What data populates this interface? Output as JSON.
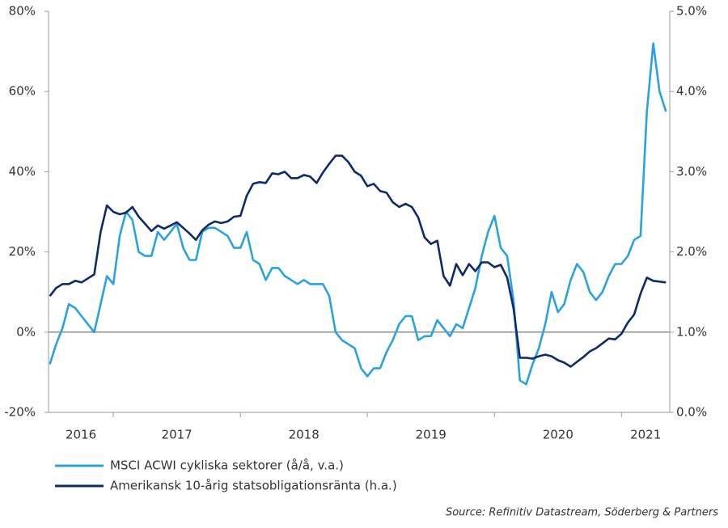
{
  "chart_data": {
    "type": "line",
    "categories": [
      "2016",
      "2017",
      "2018",
      "2019",
      "2020",
      "2021"
    ],
    "x": [
      2016.5,
      2016.55,
      2016.6,
      2016.65,
      2016.7,
      2016.75,
      2016.8,
      2016.85,
      2016.9,
      2016.95,
      2017.0,
      2017.05,
      2017.1,
      2017.15,
      2017.2,
      2017.25,
      2017.3,
      2017.35,
      2017.4,
      2017.45,
      2017.5,
      2017.55,
      2017.6,
      2017.65,
      2017.7,
      2017.75,
      2017.8,
      2017.85,
      2017.9,
      2017.95,
      2018.0,
      2018.05,
      2018.1,
      2018.15,
      2018.2,
      2018.25,
      2018.3,
      2018.35,
      2018.4,
      2018.45,
      2018.5,
      2018.55,
      2018.6,
      2018.65,
      2018.7,
      2018.75,
      2018.8,
      2018.85,
      2018.9,
      2018.95,
      2019.0,
      2019.05,
      2019.1,
      2019.15,
      2019.2,
      2019.25,
      2019.3,
      2019.35,
      2019.4,
      2019.45,
      2019.5,
      2019.55,
      2019.6,
      2019.65,
      2019.7,
      2019.75,
      2019.8,
      2019.85,
      2019.9,
      2019.95,
      2020.0,
      2020.05,
      2020.1,
      2020.15,
      2020.2,
      2020.25,
      2020.3,
      2020.35,
      2020.4,
      2020.45,
      2020.5,
      2020.55,
      2020.6,
      2020.65,
      2020.7,
      2020.75,
      2020.8,
      2020.85,
      2020.9,
      2020.95,
      2021.0,
      2021.05,
      2021.1,
      2021.15,
      2021.2,
      2021.25,
      2021.3,
      2021.35
    ],
    "xlim": [
      2016.49,
      2021.38
    ],
    "xticks": [
      2017,
      2018,
      2019,
      2020,
      2021
    ],
    "ylim": [
      -20,
      80
    ],
    "yticks": [
      {
        "value": -20,
        "label": "-20%"
      },
      {
        "value": 0,
        "label": "0%"
      },
      {
        "value": 20,
        "label": "20%"
      },
      {
        "value": 40,
        "label": "40%"
      },
      {
        "value": 60,
        "label": "60%"
      },
      {
        "value": 80,
        "label": "80%"
      }
    ],
    "y2lim": [
      0,
      5
    ],
    "y2ticks": [
      {
        "value": 0,
        "label": "0.0%"
      },
      {
        "value": 1,
        "label": "1.0%"
      },
      {
        "value": 2,
        "label": "2.0%"
      },
      {
        "value": 3,
        "label": "3.0%"
      },
      {
        "value": 4,
        "label": "4.0%"
      },
      {
        "value": 5,
        "label": "5.0%"
      }
    ],
    "series": [
      {
        "name": "MSCI ACWI cykliska sektorer (å/å, v.a.)",
        "color": "#29a3dd",
        "axis": "y",
        "values": [
          -8,
          -3,
          1,
          7,
          6,
          4,
          2,
          0,
          7,
          14,
          12,
          24,
          30,
          28,
          20,
          19,
          19,
          25,
          23,
          25,
          27,
          21,
          18,
          18,
          25,
          26,
          26,
          25,
          24,
          21,
          21,
          25,
          18,
          17,
          13,
          16,
          16,
          14,
          13,
          12,
          13,
          12,
          12,
          12,
          9,
          0,
          -2,
          -3,
          -4,
          -9,
          -11,
          -9,
          -9,
          -5,
          -2,
          2,
          4,
          4,
          -2,
          -1,
          -1,
          3,
          1,
          -1,
          2,
          1,
          6,
          11,
          19,
          25,
          29,
          21,
          19,
          8,
          -12,
          -13,
          -8,
          -4,
          2,
          10,
          5,
          7,
          13,
          17,
          15,
          10,
          8,
          10,
          14,
          17,
          17,
          19,
          23,
          24,
          55,
          72,
          60,
          55
        ]
      },
      {
        "name": "Amerikansk 10-årig statsobligationsränta (h.a.)",
        "color": "#0d2a6b",
        "axis": "y2",
        "values": [
          1.45,
          1.55,
          1.6,
          1.6,
          1.64,
          1.62,
          1.67,
          1.72,
          2.25,
          2.58,
          2.5,
          2.47,
          2.49,
          2.56,
          2.44,
          2.35,
          2.26,
          2.33,
          2.29,
          2.33,
          2.37,
          2.3,
          2.23,
          2.15,
          2.27,
          2.34,
          2.38,
          2.36,
          2.38,
          2.44,
          2.45,
          2.7,
          2.85,
          2.87,
          2.86,
          2.98,
          2.97,
          3.0,
          2.92,
          2.92,
          2.96,
          2.94,
          2.86,
          2.99,
          3.1,
          3.2,
          3.2,
          3.12,
          3.0,
          2.95,
          2.82,
          2.85,
          2.76,
          2.74,
          2.62,
          2.56,
          2.6,
          2.56,
          2.43,
          2.18,
          2.1,
          2.14,
          1.7,
          1.58,
          1.85,
          1.71,
          1.85,
          1.76,
          1.87,
          1.87,
          1.81,
          1.84,
          1.68,
          1.3,
          0.68,
          0.68,
          0.67,
          0.7,
          0.72,
          0.7,
          0.65,
          0.62,
          0.57,
          0.63,
          0.69,
          0.76,
          0.8,
          0.86,
          0.92,
          0.91,
          0.98,
          1.12,
          1.22,
          1.48,
          1.68,
          1.64,
          1.63,
          1.62
        ]
      }
    ],
    "source": "Source: Refinitiv Datastream, Söderberg & Partners"
  }
}
